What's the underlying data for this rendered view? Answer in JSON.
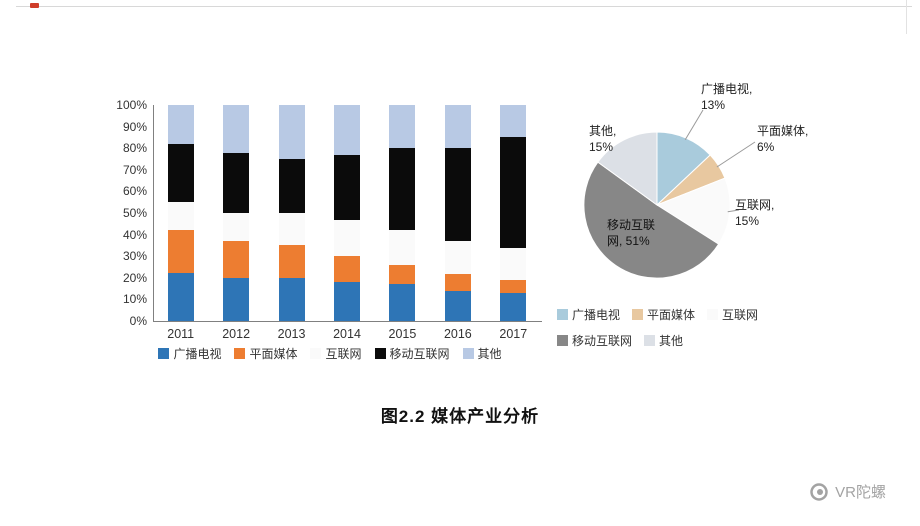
{
  "page": {
    "caption": "图2.2 媒体产业分析",
    "watermark": "VR陀螺"
  },
  "chart_data": [
    {
      "type": "bar",
      "stacked": true,
      "percent_stacked": true,
      "title": "",
      "categories": [
        "2011",
        "2012",
        "2013",
        "2014",
        "2015",
        "2016",
        "2017"
      ],
      "series": [
        {
          "name": "广播电视",
          "color": "#2E75B6",
          "values": [
            22,
            20,
            20,
            18,
            17,
            14,
            13
          ]
        },
        {
          "name": "平面媒体",
          "color": "#ED7D31",
          "values": [
            20,
            17,
            15,
            12,
            9,
            8,
            6
          ]
        },
        {
          "name": "互联网",
          "color": "#FAFAFA",
          "values": [
            13,
            13,
            15,
            17,
            16,
            15,
            15
          ]
        },
        {
          "name": "移动互联网",
          "color": "#0B0B0B",
          "values": [
            27,
            28,
            25,
            30,
            38,
            43,
            51
          ]
        },
        {
          "name": "其他",
          "color": "#B8C9E4",
          "values": [
            18,
            22,
            25,
            23,
            20,
            20,
            15
          ]
        }
      ],
      "yticks": [
        "0%",
        "10%",
        "20%",
        "30%",
        "40%",
        "50%",
        "60%",
        "70%",
        "80%",
        "90%",
        "100%"
      ],
      "ylim": [
        0,
        100
      ],
      "grid": false,
      "legend_position": "bottom"
    },
    {
      "type": "pie",
      "title": "",
      "start_angle": 0,
      "direction": "clockwise",
      "slices": [
        {
          "name": "广播电视",
          "label": "广播电视, 13%",
          "value": 13,
          "color": "#A9CBDC"
        },
        {
          "name": "平面媒体",
          "label": "平面媒体, 6%",
          "value": 6,
          "color": "#E8C8A0"
        },
        {
          "name": "互联网",
          "label": "互联网, 15%",
          "value": 15,
          "color": "#FAFAFA"
        },
        {
          "name": "移动互联网",
          "label": "移动互联网, 51%",
          "value": 51,
          "color": "#878787"
        },
        {
          "name": "其他",
          "label": "其他, 15%",
          "value": 15,
          "color": "#DCE0E6"
        }
      ],
      "legend_position": "bottom"
    }
  ]
}
